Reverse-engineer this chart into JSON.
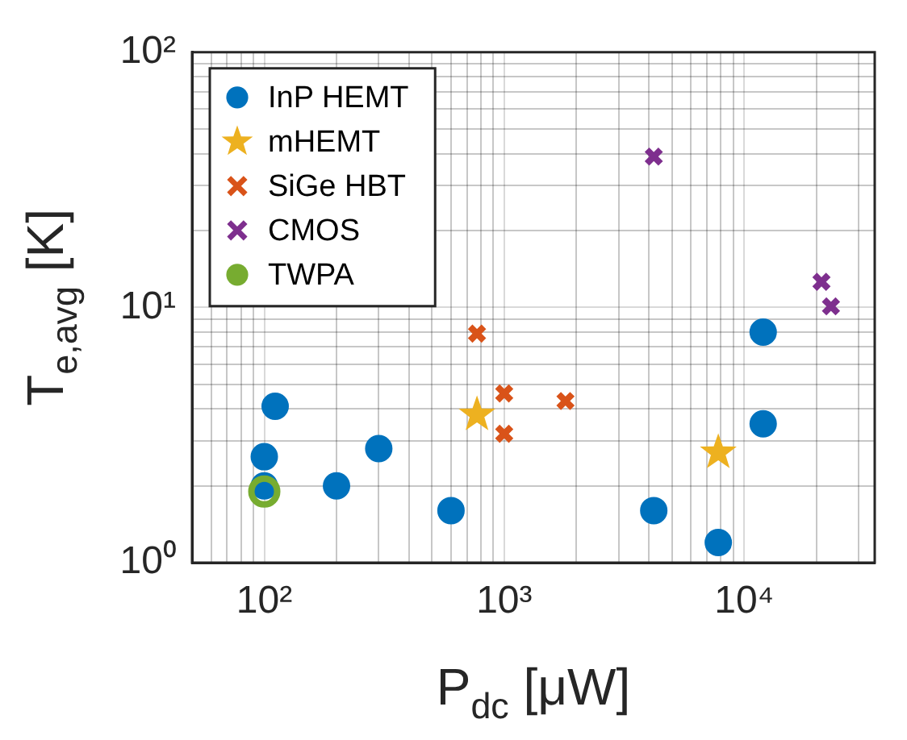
{
  "chart_data": {
    "type": "scatter",
    "xlabel": "P$_{dc}$ [μW]",
    "ylabel": "T$_{e,avg}$ [K]",
    "log": "xy",
    "grid": true,
    "legend": "top left",
    "xlim": [
      50,
      35000
    ],
    "ylim": [
      1,
      100
    ],
    "xticks": [
      {
        "value": 60,
        "label": null
      },
      {
        "value": 70,
        "label": null
      },
      {
        "value": 80,
        "label": null
      },
      {
        "value": 90,
        "label": null
      },
      {
        "value": 100,
        "label": "10²"
      },
      {
        "value": 200,
        "label": null
      },
      {
        "value": 300,
        "label": null
      },
      {
        "value": 400,
        "label": null
      },
      {
        "value": 500,
        "label": null
      },
      {
        "value": 600,
        "label": null
      },
      {
        "value": 700,
        "label": null
      },
      {
        "value": 800,
        "label": null
      },
      {
        "value": 900,
        "label": null
      },
      {
        "value": 1000,
        "label": "10³"
      },
      {
        "value": 2000,
        "label": null
      },
      {
        "value": 3000,
        "label": null
      },
      {
        "value": 4000,
        "label": null
      },
      {
        "value": 5000,
        "label": null
      },
      {
        "value": 6000,
        "label": null
      },
      {
        "value": 7000,
        "label": null
      },
      {
        "value": 8000,
        "label": null
      },
      {
        "value": 9000,
        "label": null
      },
      {
        "value": 10000,
        "label": "10⁴"
      },
      {
        "value": 20000,
        "label": null
      },
      {
        "value": 30000,
        "label": null
      }
    ],
    "yticks": [
      {
        "value": 1,
        "label": "10⁰"
      },
      {
        "value": 2,
        "label": null
      },
      {
        "value": 3,
        "label": null
      },
      {
        "value": 4,
        "label": null
      },
      {
        "value": 5,
        "label": null
      },
      {
        "value": 6,
        "label": null
      },
      {
        "value": 7,
        "label": null
      },
      {
        "value": 8,
        "label": null
      },
      {
        "value": 9,
        "label": null
      },
      {
        "value": 10,
        "label": "10¹"
      },
      {
        "value": 20,
        "label": null
      },
      {
        "value": 30,
        "label": null
      },
      {
        "value": 40,
        "label": null
      },
      {
        "value": 50,
        "label": null
      },
      {
        "value": 60,
        "label": null
      },
      {
        "value": 70,
        "label": null
      },
      {
        "value": 80,
        "label": null
      },
      {
        "value": 90,
        "label": null
      },
      {
        "value": 100,
        "label": "10²"
      }
    ],
    "series": [
      {
        "name": "InP HEMT",
        "color": "#0072bd",
        "marker": "circle",
        "x": [
          111,
          100,
          100,
          200,
          300,
          600,
          4200,
          7800,
          12000,
          12000
        ],
        "values": [
          4.1,
          2.6,
          2.0,
          2.0,
          2.8,
          1.6,
          1.6,
          1.2,
          8.0,
          3.5
        ]
      },
      {
        "name": "mHEMT",
        "color": "#edb120",
        "marker": "star",
        "x": [
          770,
          7800
        ],
        "values": [
          3.8,
          2.7
        ]
      },
      {
        "name": "SiGe HBT",
        "color": "#d95319",
        "marker": "cross",
        "x": [
          770,
          1000,
          1000,
          1800
        ],
        "values": [
          7.9,
          4.6,
          3.2,
          4.3
        ]
      },
      {
        "name": "CMOS",
        "color": "#7e2f8e",
        "marker": "cross",
        "x": [
          4200,
          21000,
          23000
        ],
        "values": [
          39,
          12.6,
          10.1
        ]
      },
      {
        "name": "TWPA",
        "color": "#77ac30",
        "marker": "circle",
        "x": [
          100
        ],
        "values": [
          1.9
        ]
      }
    ]
  }
}
